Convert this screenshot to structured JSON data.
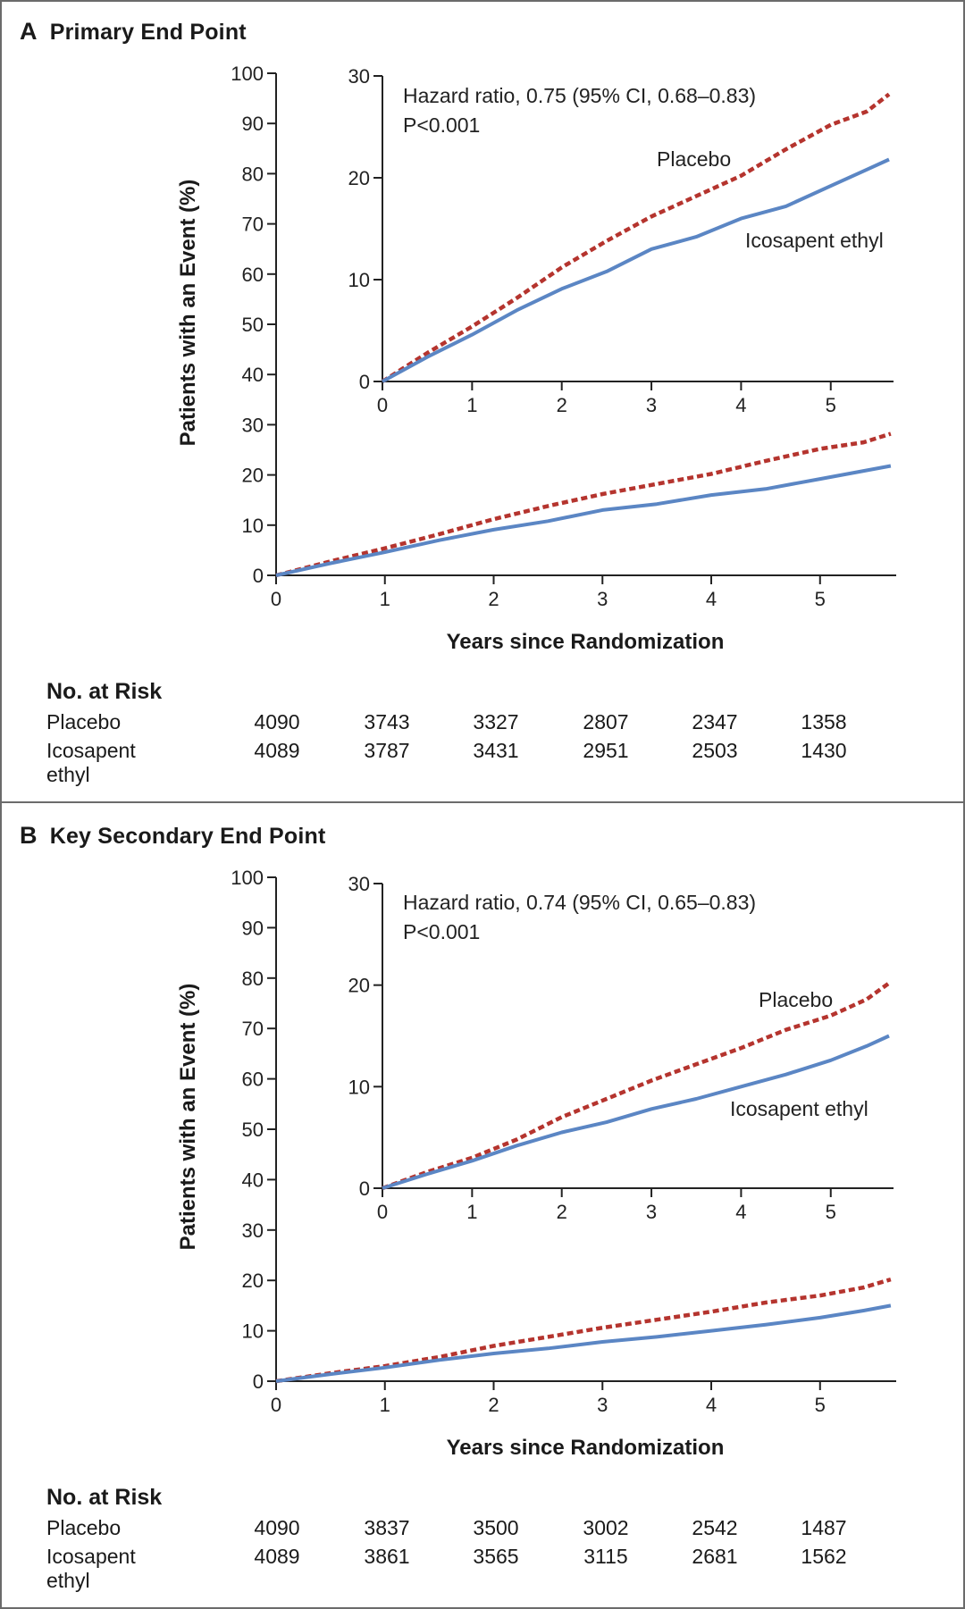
{
  "colors": {
    "placebo": "#b5342e",
    "icosapent": "#5b86c4",
    "frame": "#6b6b6b"
  },
  "panels": [
    {
      "letter": "A",
      "title": "Primary End Point",
      "y_label": "Patients with an Event (%)",
      "x_label": "Years since Randomization",
      "annotation": {
        "hr": "Hazard ratio, 0.75 (95% CI, 0.68–0.83)",
        "p": "P<0.001"
      },
      "labels": {
        "placebo": "Placebo",
        "icosapent": "Icosapent ethyl"
      },
      "risk": {
        "title": "No. at Risk",
        "rows": [
          {
            "name": "Placebo",
            "values": [
              "4090",
              "3743",
              "3327",
              "2807",
              "2347",
              "1358"
            ]
          },
          {
            "name": "Icosapent ethyl",
            "values": [
              "4089",
              "3787",
              "3431",
              "2951",
              "2503",
              "1430"
            ]
          }
        ]
      }
    },
    {
      "letter": "B",
      "title": "Key Secondary End Point",
      "y_label": "Patients with an Event (%)",
      "x_label": "Years since Randomization",
      "annotation": {
        "hr": "Hazard ratio, 0.74 (95% CI, 0.65–0.83)",
        "p": "P<0.001"
      },
      "labels": {
        "placebo": "Placebo",
        "icosapent": "Icosapent ethyl"
      },
      "risk": {
        "title": "No. at Risk",
        "rows": [
          {
            "name": "Placebo",
            "values": [
              "4090",
              "3837",
              "3500",
              "3002",
              "2542",
              "1487"
            ]
          },
          {
            "name": "Icosapent ethyl",
            "values": [
              "4089",
              "3861",
              "3565",
              "3115",
              "2681",
              "1562"
            ]
          }
        ]
      }
    }
  ],
  "chart_data": [
    {
      "type": "line",
      "title": "Primary End Point",
      "xlabel": "Years since Randomization",
      "ylabel": "Patients with an Event (%)",
      "xlim": [
        0,
        5.7
      ],
      "ylim": [
        0,
        100
      ],
      "x_ticks": [
        0,
        1,
        2,
        3,
        4,
        5
      ],
      "y_ticks": [
        0,
        10,
        20,
        30,
        40,
        50,
        60,
        70,
        80,
        90,
        100
      ],
      "inset": {
        "xlim": [
          0,
          5.7
        ],
        "ylim": [
          0,
          30
        ],
        "x_ticks": [
          0,
          1,
          2,
          3,
          4,
          5
        ],
        "y_ticks": [
          0,
          10,
          20,
          30
        ]
      },
      "series": [
        {
          "name": "Placebo",
          "style": "dashed",
          "x": [
            0,
            0.5,
            1,
            1.5,
            2,
            2.5,
            3,
            3.5,
            4,
            4.5,
            5,
            5.4,
            5.65
          ],
          "y": [
            0,
            2.8,
            5.4,
            8.2,
            11.2,
            13.8,
            16.2,
            18.2,
            20.2,
            22.8,
            25.2,
            26.5,
            28.2
          ]
        },
        {
          "name": "Icosapent ethyl",
          "style": "solid",
          "x": [
            0,
            0.5,
            1,
            1.5,
            2,
            2.5,
            3,
            3.5,
            4,
            4.5,
            5,
            5.4,
            5.65
          ],
          "y": [
            0,
            2.4,
            4.6,
            7.0,
            9.1,
            10.8,
            13.0,
            14.2,
            16.0,
            17.2,
            19.2,
            20.8,
            21.8
          ]
        }
      ]
    },
    {
      "type": "line",
      "title": "Key Secondary End Point",
      "xlabel": "Years since Randomization",
      "ylabel": "Patients with an Event (%)",
      "xlim": [
        0,
        5.7
      ],
      "ylim": [
        0,
        100
      ],
      "x_ticks": [
        0,
        1,
        2,
        3,
        4,
        5
      ],
      "y_ticks": [
        0,
        10,
        20,
        30,
        40,
        50,
        60,
        70,
        80,
        90,
        100
      ],
      "inset": {
        "xlim": [
          0,
          5.7
        ],
        "ylim": [
          0,
          30
        ],
        "x_ticks": [
          0,
          1,
          2,
          3,
          4,
          5
        ],
        "y_ticks": [
          0,
          10,
          20,
          30
        ]
      },
      "series": [
        {
          "name": "Placebo",
          "style": "dashed",
          "x": [
            0,
            0.5,
            1,
            1.5,
            2,
            2.5,
            3,
            3.5,
            4,
            4.5,
            5,
            5.4,
            5.65
          ],
          "y": [
            0,
            1.6,
            3.0,
            4.8,
            7.0,
            8.8,
            10.6,
            12.2,
            13.8,
            15.6,
            17.0,
            18.6,
            20.2
          ]
        },
        {
          "name": "Icosapent ethyl",
          "style": "solid",
          "x": [
            0,
            0.5,
            1,
            1.5,
            2,
            2.5,
            3,
            3.5,
            4,
            4.5,
            5,
            5.4,
            5.65
          ],
          "y": [
            0,
            1.4,
            2.7,
            4.2,
            5.5,
            6.5,
            7.8,
            8.8,
            10.0,
            11.2,
            12.6,
            14.0,
            15.0
          ]
        }
      ]
    }
  ]
}
